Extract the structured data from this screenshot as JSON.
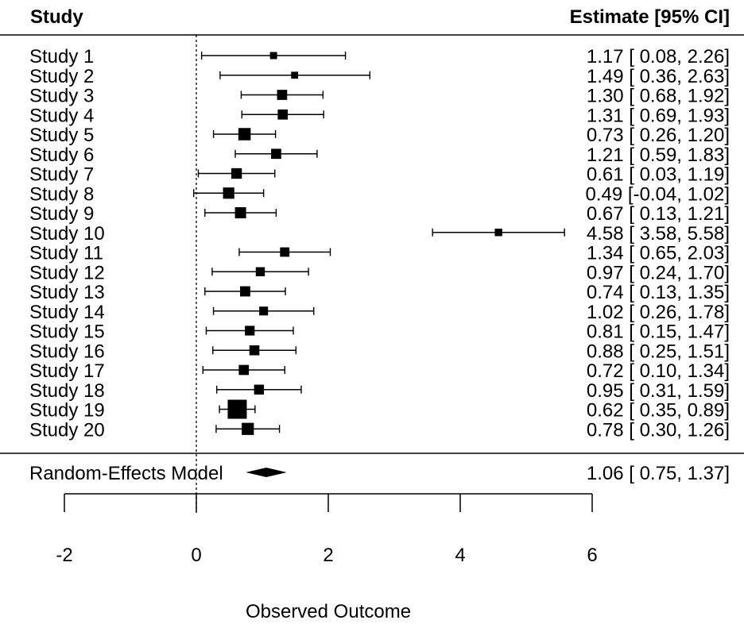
{
  "chart_data": {
    "type": "forest",
    "header_left": "Study",
    "header_right": "Estimate [95% CI]",
    "xlabel": "Observed Outcome",
    "xlim": [
      -2,
      6
    ],
    "x_ticks": [
      -2,
      0,
      2,
      4,
      6
    ],
    "reference_line": 0,
    "studies": [
      {
        "label": "Study 1",
        "est": 1.17,
        "lo": 0.08,
        "hi": 2.26,
        "ci_text": "1.17 [ 0.08, 2.26]"
      },
      {
        "label": "Study 2",
        "est": 1.49,
        "lo": 0.36,
        "hi": 2.63,
        "ci_text": "1.49 [ 0.36, 2.63]"
      },
      {
        "label": "Study 3",
        "est": 1.3,
        "lo": 0.68,
        "hi": 1.92,
        "ci_text": "1.30 [ 0.68, 1.92]"
      },
      {
        "label": "Study 4",
        "est": 1.31,
        "lo": 0.69,
        "hi": 1.93,
        "ci_text": "1.31 [ 0.69, 1.93]"
      },
      {
        "label": "Study 5",
        "est": 0.73,
        "lo": 0.26,
        "hi": 1.2,
        "ci_text": "0.73 [ 0.26, 1.20]"
      },
      {
        "label": "Study 6",
        "est": 1.21,
        "lo": 0.59,
        "hi": 1.83,
        "ci_text": "1.21 [ 0.59, 1.83]"
      },
      {
        "label": "Study 7",
        "est": 0.61,
        "lo": 0.03,
        "hi": 1.19,
        "ci_text": "0.61 [ 0.03, 1.19]"
      },
      {
        "label": "Study 8",
        "est": 0.49,
        "lo": -0.04,
        "hi": 1.02,
        "ci_text": "0.49 [-0.04, 1.02]"
      },
      {
        "label": "Study 9",
        "est": 0.67,
        "lo": 0.13,
        "hi": 1.21,
        "ci_text": "0.67 [ 0.13, 1.21]"
      },
      {
        "label": "Study 10",
        "est": 4.58,
        "lo": 3.58,
        "hi": 5.58,
        "ci_text": "4.58 [ 3.58, 5.58]"
      },
      {
        "label": "Study 11",
        "est": 1.34,
        "lo": 0.65,
        "hi": 2.03,
        "ci_text": "1.34 [ 0.65, 2.03]"
      },
      {
        "label": "Study 12",
        "est": 0.97,
        "lo": 0.24,
        "hi": 1.7,
        "ci_text": "0.97 [ 0.24, 1.70]"
      },
      {
        "label": "Study 13",
        "est": 0.74,
        "lo": 0.13,
        "hi": 1.35,
        "ci_text": "0.74 [ 0.13, 1.35]"
      },
      {
        "label": "Study 14",
        "est": 1.02,
        "lo": 0.26,
        "hi": 1.78,
        "ci_text": "1.02 [ 0.26, 1.78]"
      },
      {
        "label": "Study 15",
        "est": 0.81,
        "lo": 0.15,
        "hi": 1.47,
        "ci_text": "0.81 [ 0.15, 1.47]"
      },
      {
        "label": "Study 16",
        "est": 0.88,
        "lo": 0.25,
        "hi": 1.51,
        "ci_text": "0.88 [ 0.25, 1.51]"
      },
      {
        "label": "Study 17",
        "est": 0.72,
        "lo": 0.1,
        "hi": 1.34,
        "ci_text": "0.72 [ 0.10, 1.34]"
      },
      {
        "label": "Study 18",
        "est": 0.95,
        "lo": 0.31,
        "hi": 1.59,
        "ci_text": "0.95 [ 0.31, 1.59]"
      },
      {
        "label": "Study 19",
        "est": 0.62,
        "lo": 0.35,
        "hi": 0.89,
        "ci_text": "0.62 [ 0.35, 0.89]"
      },
      {
        "label": "Study 20",
        "est": 0.78,
        "lo": 0.3,
        "hi": 1.26,
        "ci_text": "0.78 [ 0.30, 1.26]"
      }
    ],
    "summary": {
      "label": "Random-Effects Model",
      "est": 1.06,
      "lo": 0.75,
      "hi": 1.37,
      "ci_text": "1.06 [ 0.75, 1.37]"
    }
  }
}
